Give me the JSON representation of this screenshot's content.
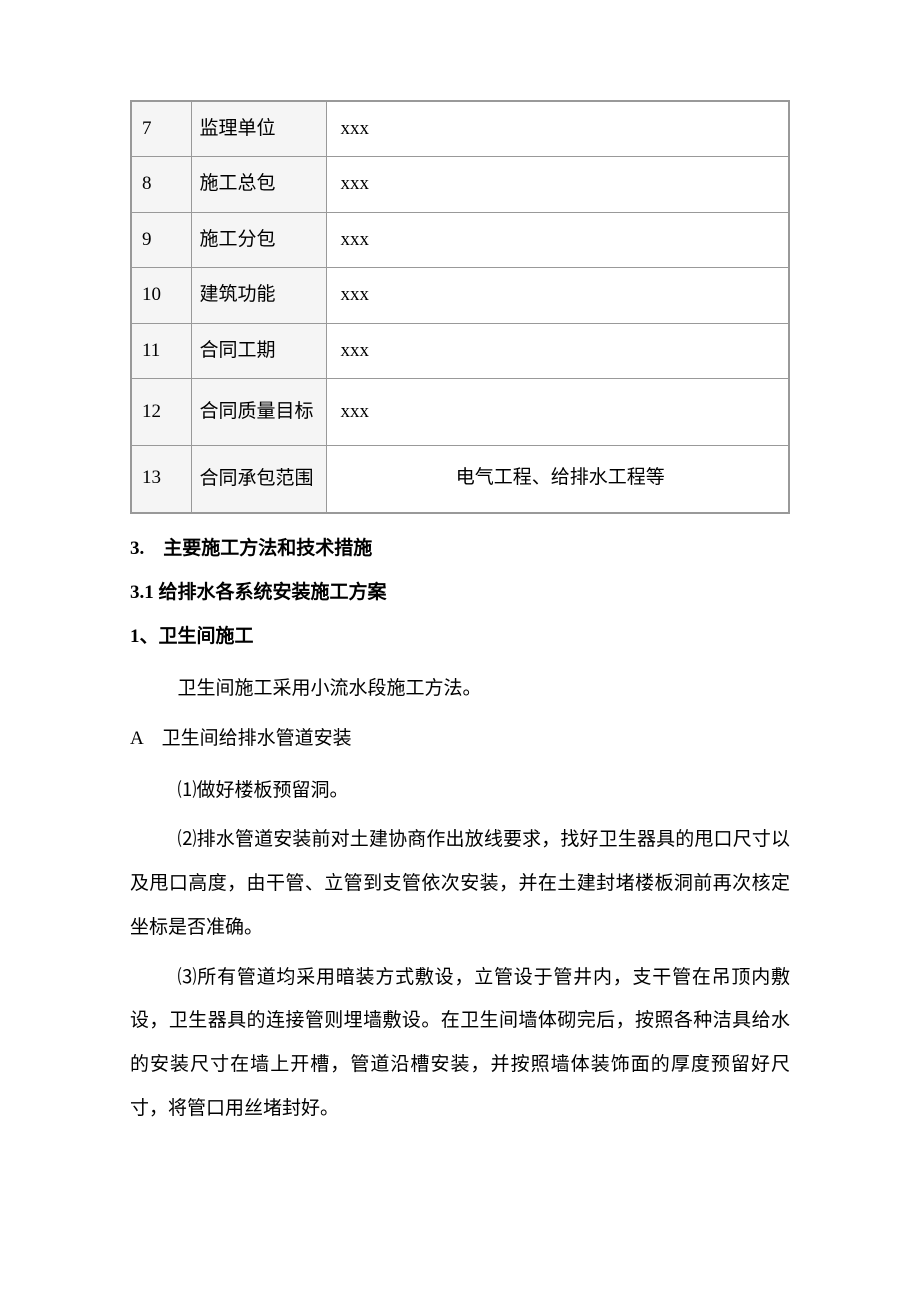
{
  "table": {
    "rows": [
      {
        "num": "7",
        "label": "监理单位",
        "value": "xxx",
        "center": false
      },
      {
        "num": "8",
        "label": "施工总包",
        "value": "xxx",
        "center": false
      },
      {
        "num": "9",
        "label": "施工分包",
        "value": "xxx",
        "center": false
      },
      {
        "num": "10",
        "label": "建筑功能",
        "value": "xxx",
        "center": false
      },
      {
        "num": "11",
        "label": "合同工期",
        "value": "xxx",
        "center": false
      },
      {
        "num": "12",
        "label": "合同质量目标",
        "value": "xxx",
        "center": false,
        "multiline": true
      },
      {
        "num": "13",
        "label": "合同承包范围",
        "value": "电气工程、给排水工程等",
        "center": true,
        "multiline": true
      }
    ]
  },
  "sections": {
    "h3": "3.　主要施工方法和技术措施",
    "h31": "3.1 给排水各系统安装施工方案",
    "sub1": "1、卫生间施工",
    "p1": "卫生间施工采用小流水段施工方法。",
    "subA": "A　卫生间给排水管道安装",
    "p2": "⑴做好楼板预留洞。",
    "p3": "⑵排水管道安装前对土建协商作出放线要求，找好卫生器具的甩口尺寸以及甩口高度，由干管、立管到支管依次安装，并在土建封堵楼板洞前再次核定坐标是否准确。",
    "p4": "⑶所有管道均采用暗装方式敷设，立管设于管井内，支干管在吊顶内敷设，卫生器具的连接管则埋墙敷设。在卫生间墙体砌完后，按照各种洁具给水的安装尺寸在墙上开槽，管道沿槽安装，并按照墙体装饰面的厚度预留好尺寸，将管口用丝堵封好。"
  }
}
